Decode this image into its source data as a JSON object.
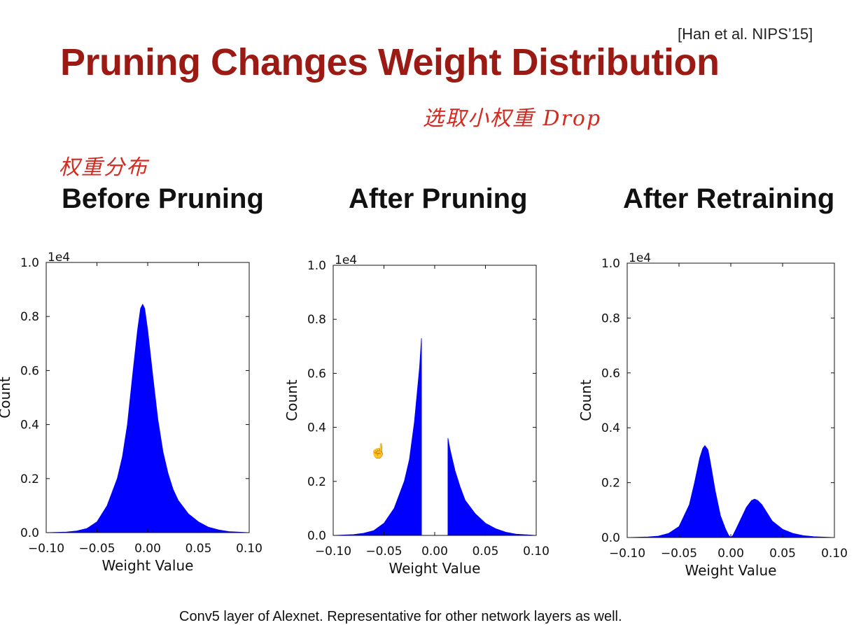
{
  "slide": {
    "citation": "[Han et al. NIPS’15]",
    "title": "Pruning Changes Weight Distribution",
    "annotation_top": "选取小权重 Drop",
    "annotation_left": "权重分布",
    "caption": "Conv5 layer of Alexnet. Representative for other network layers as well.",
    "colors": {
      "title": "#9b1b14",
      "annotation": "#d42a1f",
      "bars": "#0000ff"
    },
    "cursor_icon": "hand-cursor-icon"
  },
  "chart_data": [
    {
      "type": "area",
      "title": "Before Pruning",
      "xlabel": "Weight Value",
      "ylabel": "Count",
      "offset_label": "1e4",
      "xlim": [
        -0.1,
        0.1
      ],
      "ylim": [
        0,
        1.0
      ],
      "xticks": [
        "−0.10",
        "−0.05",
        "0.00",
        "0.05",
        "0.10"
      ],
      "yticks": [
        "0.0",
        "0.2",
        "0.4",
        "0.6",
        "0.8",
        "1.0"
      ],
      "color": "#0000ff",
      "x": [
        -0.1,
        -0.08,
        -0.07,
        -0.06,
        -0.05,
        -0.04,
        -0.03,
        -0.025,
        -0.02,
        -0.015,
        -0.01,
        -0.007,
        -0.005,
        -0.003,
        0.0,
        0.005,
        0.01,
        0.015,
        0.02,
        0.025,
        0.03,
        0.04,
        0.05,
        0.06,
        0.07,
        0.08,
        0.1
      ],
      "y": [
        0.0,
        0.002,
        0.006,
        0.015,
        0.04,
        0.1,
        0.2,
        0.28,
        0.4,
        0.58,
        0.75,
        0.83,
        0.845,
        0.83,
        0.75,
        0.58,
        0.42,
        0.3,
        0.22,
        0.16,
        0.12,
        0.07,
        0.04,
        0.02,
        0.01,
        0.004,
        0.0
      ]
    },
    {
      "type": "area",
      "title": "After Pruning",
      "xlabel": "Weight Value",
      "ylabel": "Count",
      "offset_label": "1e4",
      "xlim": [
        -0.1,
        0.1
      ],
      "ylim": [
        0,
        1.0
      ],
      "xticks": [
        "−0.10",
        "−0.05",
        "0.00",
        "0.05",
        "0.10"
      ],
      "yticks": [
        "0.0",
        "0.2",
        "0.4",
        "0.6",
        "0.8",
        "1.0"
      ],
      "color": "#0000ff",
      "segments": [
        {
          "x": [
            -0.1,
            -0.08,
            -0.07,
            -0.06,
            -0.05,
            -0.04,
            -0.03,
            -0.025,
            -0.02,
            -0.015,
            -0.013,
            -0.013
          ],
          "y": [
            0.0,
            0.003,
            0.008,
            0.018,
            0.045,
            0.1,
            0.2,
            0.28,
            0.42,
            0.62,
            0.73,
            0.0
          ]
        },
        {
          "x": [
            0.013,
            0.013,
            0.015,
            0.02,
            0.025,
            0.03,
            0.04,
            0.05,
            0.06,
            0.07,
            0.08,
            0.1
          ],
          "y": [
            0.0,
            0.36,
            0.32,
            0.24,
            0.18,
            0.13,
            0.08,
            0.045,
            0.025,
            0.012,
            0.005,
            0.0
          ]
        }
      ]
    },
    {
      "type": "area",
      "title": "After Retraining",
      "xlabel": "Weight Value",
      "ylabel": "Count",
      "offset_label": "1e4",
      "xlim": [
        -0.1,
        0.1
      ],
      "ylim": [
        0,
        1.0
      ],
      "xticks": [
        "−0.10",
        "−0.05",
        "0.00",
        "0.05",
        "0.10"
      ],
      "yticks": [
        "0.0",
        "0.2",
        "0.4",
        "0.6",
        "0.8",
        "1.0"
      ],
      "color": "#0000ff",
      "x": [
        -0.1,
        -0.08,
        -0.07,
        -0.06,
        -0.05,
        -0.04,
        -0.035,
        -0.03,
        -0.027,
        -0.025,
        -0.022,
        -0.02,
        -0.015,
        -0.01,
        -0.005,
        -0.002,
        0.0,
        0.002,
        0.005,
        0.01,
        0.015,
        0.02,
        0.023,
        0.026,
        0.03,
        0.035,
        0.04,
        0.05,
        0.06,
        0.07,
        0.08,
        0.1
      ],
      "y": [
        0.0,
        0.002,
        0.005,
        0.015,
        0.04,
        0.12,
        0.2,
        0.29,
        0.325,
        0.335,
        0.32,
        0.28,
        0.17,
        0.08,
        0.03,
        0.008,
        0.0,
        0.008,
        0.03,
        0.07,
        0.11,
        0.135,
        0.14,
        0.135,
        0.12,
        0.09,
        0.06,
        0.03,
        0.015,
        0.007,
        0.003,
        0.0
      ]
    }
  ]
}
